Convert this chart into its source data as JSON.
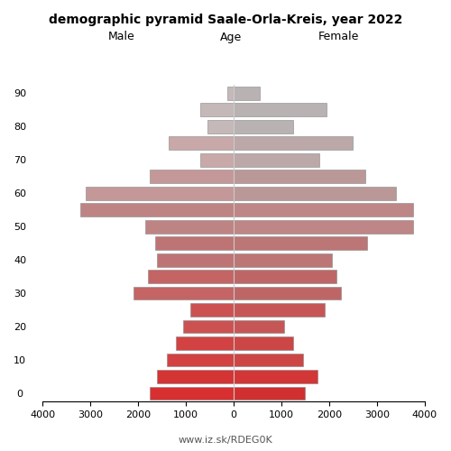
{
  "title": "demographic pyramid Saale-Orla-Kreis, year 2022",
  "male_vals": [
    130,
    700,
    550,
    1350,
    700,
    1750,
    3100,
    3200,
    1850,
    1650,
    1600,
    1800,
    2100,
    900,
    1050,
    1200,
    1400,
    1600,
    1750
  ],
  "female_vals": [
    550,
    1950,
    1250,
    2500,
    1800,
    2750,
    3400,
    3750,
    3750,
    2800,
    2050,
    2150,
    2250,
    1900,
    1050,
    1250,
    1450,
    1750,
    1500
  ],
  "age_group_starts": [
    90,
    85,
    80,
    75,
    70,
    65,
    60,
    55,
    50,
    45,
    40,
    35,
    30,
    25,
    20,
    15,
    10,
    5,
    0
  ],
  "age_tick_vals": [
    0,
    10,
    20,
    30,
    40,
    50,
    60,
    70,
    80,
    90
  ],
  "male_colors": [
    "#c4b8b8",
    "#c4b8b8",
    "#c4b8b8",
    "#c8a8a8",
    "#c8a8a8",
    "#c49898",
    "#c49898",
    "#be8484",
    "#be8484",
    "#be7474",
    "#be7474",
    "#c46464",
    "#c46464",
    "#cc5252",
    "#cc5252",
    "#d24242",
    "#d24242",
    "#d43434",
    "#d83030"
  ],
  "female_colors": [
    "#b8b2b2",
    "#b8b2b2",
    "#b8b2b2",
    "#bca8a8",
    "#bca8a8",
    "#ba9898",
    "#ba9898",
    "#be8686",
    "#be8686",
    "#bc7676",
    "#bc7676",
    "#be6666",
    "#be6666",
    "#c65656",
    "#c65656",
    "#cc4646",
    "#cc4646",
    "#d23636",
    "#d03030"
  ],
  "xlim": 4000,
  "xticks": [
    4000,
    3000,
    2000,
    1000,
    0,
    1000,
    2000,
    3000,
    4000
  ],
  "watermark": "www.iz.sk/RDEG0K",
  "label_male": "Male",
  "label_female": "Female",
  "label_age": "Age",
  "bar_height": 0.8,
  "figsize": [
    5.0,
    5.0
  ],
  "dpi": 100
}
